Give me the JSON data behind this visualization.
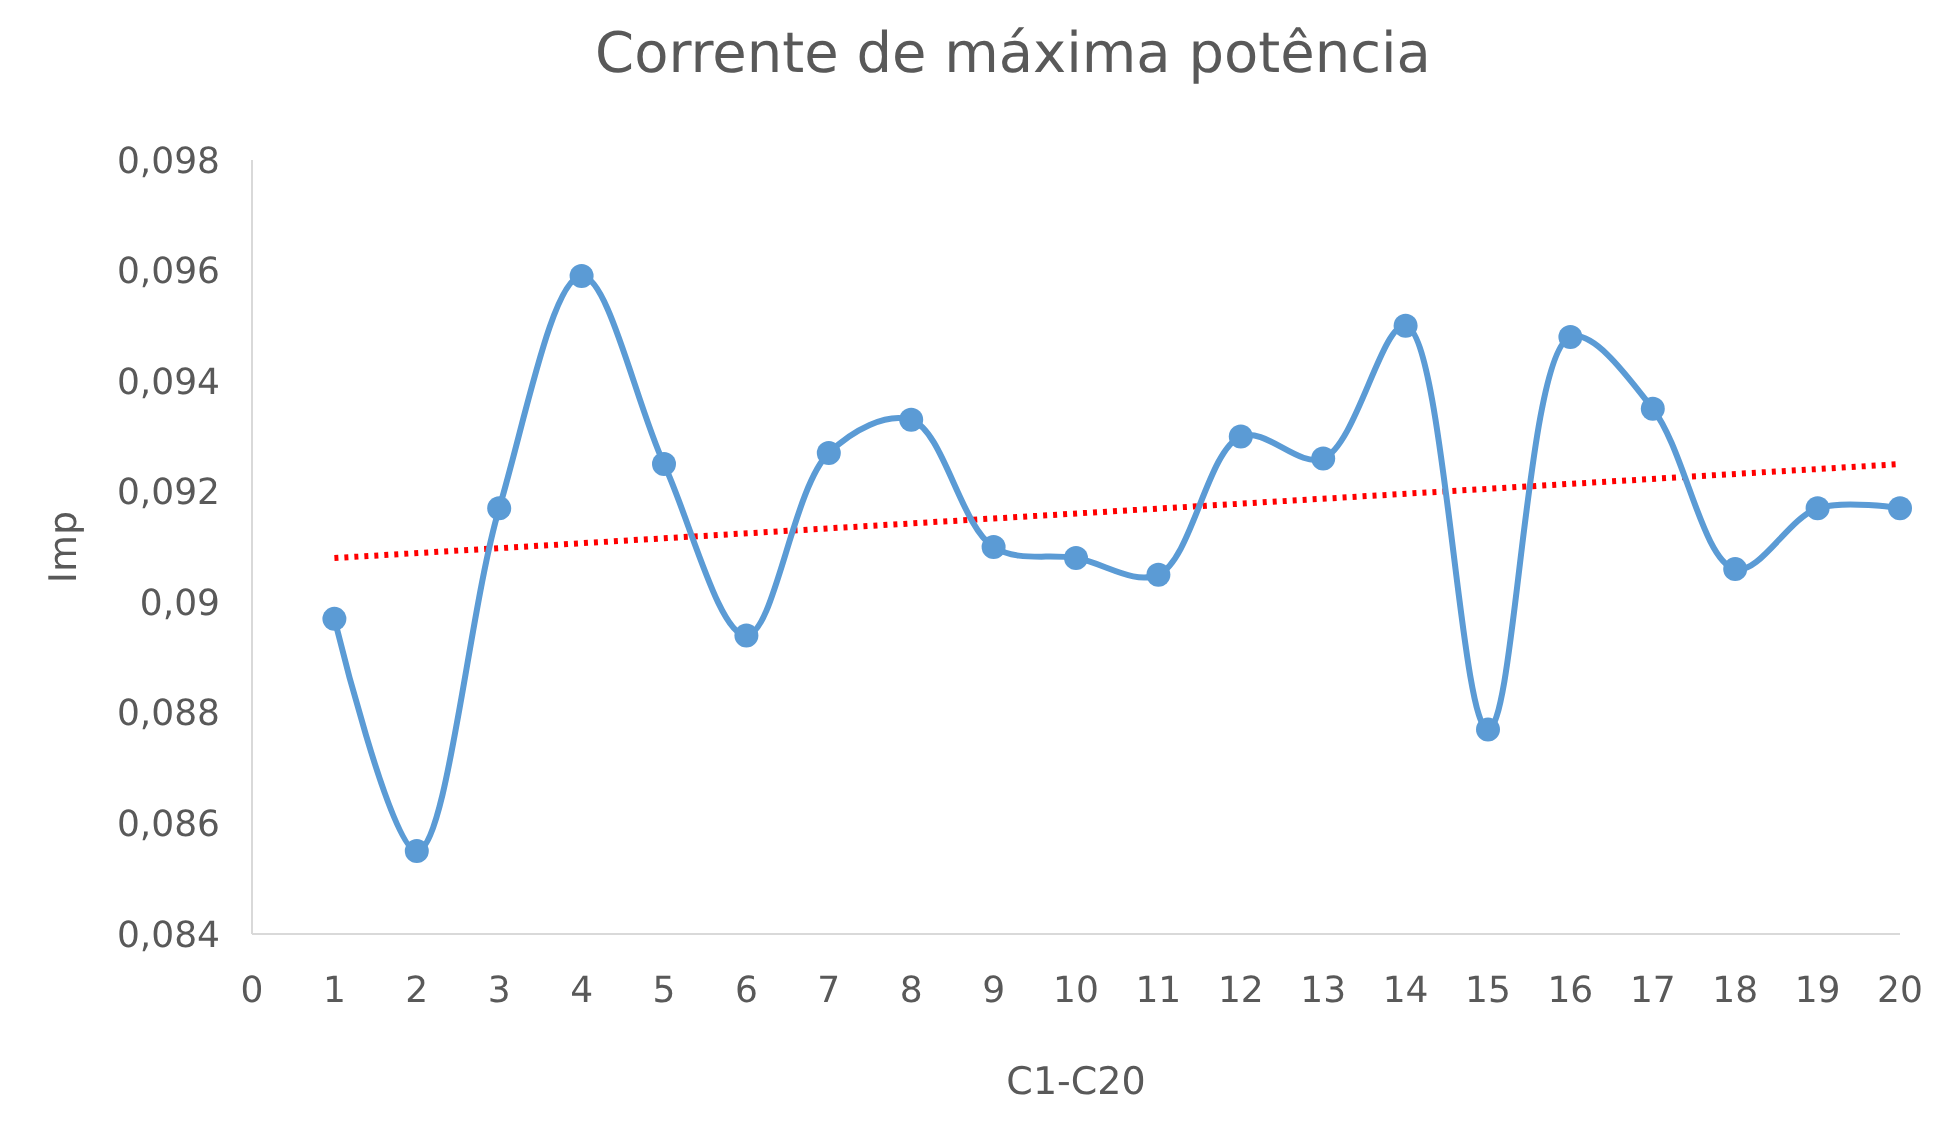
{
  "chart_data": {
    "type": "line",
    "title": "Corrente de máxima potência",
    "xlabel": "C1-C20",
    "ylabel": "Imp",
    "xlim": [
      0,
      20
    ],
    "xticks": [
      0,
      1,
      2,
      3,
      4,
      5,
      6,
      7,
      8,
      9,
      10,
      11,
      12,
      13,
      14,
      15,
      16,
      17,
      18,
      19,
      20
    ],
    "ylim": [
      0.084,
      0.098
    ],
    "yticks": [
      {
        "value": 0.084,
        "label": "0,084"
      },
      {
        "value": 0.086,
        "label": "0,086"
      },
      {
        "value": 0.088,
        "label": "0,088"
      },
      {
        "value": 0.09,
        "label": "0,09"
      },
      {
        "value": 0.092,
        "label": "0,092"
      },
      {
        "value": 0.094,
        "label": "0,094"
      },
      {
        "value": 0.096,
        "label": "0,096"
      },
      {
        "value": 0.098,
        "label": "0,098"
      }
    ],
    "grid": false,
    "series": [
      {
        "color": "#5b9bd5",
        "marker": "circle",
        "line_style": "solid",
        "x": [
          1,
          2,
          3,
          4,
          5,
          6,
          7,
          8,
          9,
          10,
          11,
          12,
          13,
          14,
          15,
          16,
          17,
          18,
          19,
          20
        ],
        "values": [
          0.0897,
          0.0855,
          0.0917,
          0.0959,
          0.0925,
          0.0894,
          0.0927,
          0.0933,
          0.091,
          0.0908,
          0.0905,
          0.093,
          0.0926,
          0.095,
          0.0877,
          0.0948,
          0.0935,
          0.0906,
          0.0917,
          0.0917
        ]
      },
      {
        "color": "#ff0000",
        "marker": "none",
        "line_style": "dotted",
        "x": [
          1,
          20
        ],
        "values": [
          0.0908,
          0.0925
        ]
      }
    ]
  }
}
